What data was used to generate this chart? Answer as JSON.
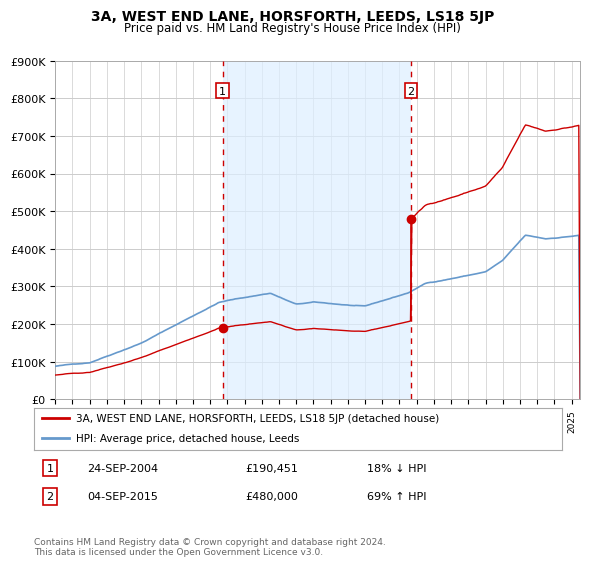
{
  "title": "3A, WEST END LANE, HORSFORTH, LEEDS, LS18 5JP",
  "subtitle": "Price paid vs. HM Land Registry's House Price Index (HPI)",
  "fig_bg": "#ffffff",
  "plot_bg": "#ffffff",
  "grid_color": "#cccccc",
  "shade_color": "#ddeeff",
  "ylim": [
    0,
    900000
  ],
  "yticks": [
    0,
    100000,
    200000,
    300000,
    400000,
    500000,
    600000,
    700000,
    800000,
    900000
  ],
  "ytick_labels": [
    "£0",
    "£100K",
    "£200K",
    "£300K",
    "£400K",
    "£500K",
    "£600K",
    "£700K",
    "£800K",
    "£900K"
  ],
  "xlim_start": 1995.25,
  "xlim_end": 2025.5,
  "sale1_date": 2004.73,
  "sale1_price": 190451,
  "sale1_label": "1",
  "sale1_text": "24-SEP-2004",
  "sale1_amount": "£190,451",
  "sale1_hpi": "18% ↓ HPI",
  "sale2_date": 2015.67,
  "sale2_price": 480000,
  "sale2_label": "2",
  "sale2_text": "04-SEP-2015",
  "sale2_amount": "£480,000",
  "sale2_hpi": "69% ↑ HPI",
  "property_color": "#cc0000",
  "hpi_color": "#6699cc",
  "legend_property": "3A, WEST END LANE, HORSFORTH, LEEDS, LS18 5JP (detached house)",
  "legend_hpi": "HPI: Average price, detached house, Leeds",
  "footer": "Contains HM Land Registry data © Crown copyright and database right 2024.\nThis data is licensed under the Open Government Licence v3.0."
}
